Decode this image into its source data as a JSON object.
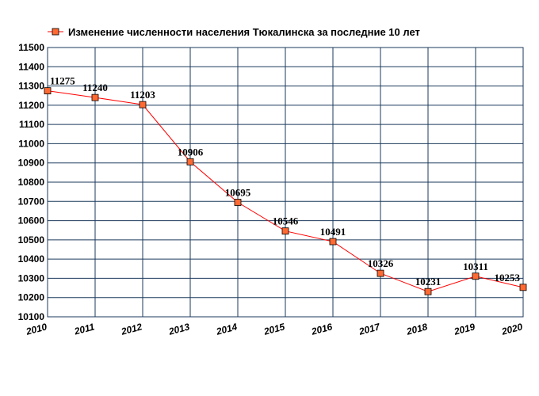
{
  "chart_data": {
    "type": "line",
    "title": "",
    "xlabel": "",
    "ylabel": "",
    "x": [
      "2010",
      "2011",
      "2012",
      "2013",
      "2014",
      "2015",
      "2016",
      "2017",
      "2018",
      "2019",
      "2020"
    ],
    "series": [
      {
        "name": "Изменение численности населения Тюкалинска за последние 10 лет",
        "values": [
          11275,
          11240,
          11203,
          10906,
          10695,
          10546,
          10491,
          10326,
          10231,
          10311,
          10253
        ],
        "color": "#ff0000",
        "marker_color": "#ff6a33"
      }
    ],
    "ylim": [
      10100,
      11500
    ],
    "ytick_step": 100,
    "grid": true,
    "grid_color": "#1b3a5c",
    "legend": "top-left",
    "data_labels": true
  }
}
